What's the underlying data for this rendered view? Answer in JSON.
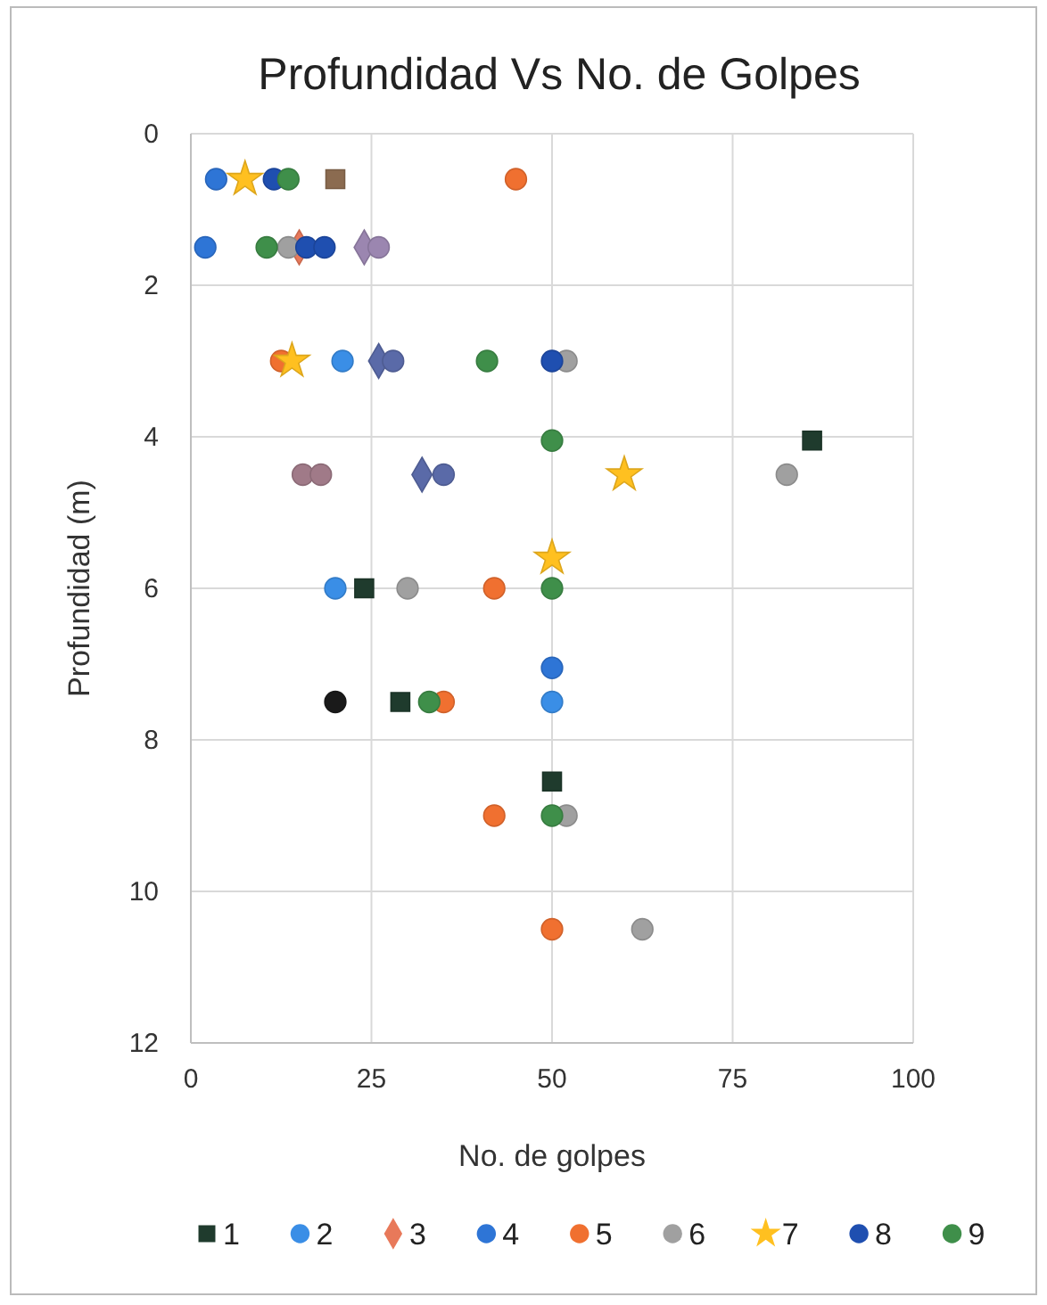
{
  "chart_data": {
    "type": "scatter",
    "title": "Profundidad Vs No. de Golpes",
    "xlabel": "No. de golpes",
    "ylabel": "Profundidad (m)",
    "xlim": [
      0,
      100
    ],
    "xticks": [
      0,
      25,
      50,
      75,
      100
    ],
    "ylim": [
      12,
      0
    ],
    "yticks": [
      0,
      2,
      4,
      6,
      8,
      10,
      12
    ],
    "grid": true,
    "legend": "bottom",
    "series": [
      {
        "name": "1",
        "color": "#1f3b2d",
        "marker": "square",
        "x": [
          86,
          24,
          29,
          50
        ],
        "values": [
          4.05,
          6,
          7.5,
          8.55
        ]
      },
      {
        "name": "2",
        "color": "#3a8ee6",
        "marker": "circle",
        "x": [
          21,
          20,
          50
        ],
        "values": [
          3,
          6,
          7.5
        ]
      },
      {
        "name": "3",
        "color": "#e8795a",
        "marker": "diamond",
        "x": [
          15
        ],
        "values": [
          1.5
        ]
      },
      {
        "name": "4",
        "color": "#2e75d6",
        "marker": "circle",
        "x": [
          3.5,
          2,
          50
        ],
        "values": [
          0.6,
          1.5,
          7.05
        ]
      },
      {
        "name": "5",
        "color": "#f07030",
        "marker": "circle",
        "x": [
          45,
          12.5,
          42,
          35,
          42,
          50
        ],
        "values": [
          0.6,
          3,
          6,
          7.5,
          9,
          10.5
        ]
      },
      {
        "name": "6",
        "color": "#a0a0a0",
        "marker": "circle",
        "x": [
          13.5,
          52,
          82.5,
          30,
          52,
          62.5
        ],
        "values": [
          1.5,
          3,
          4.5,
          6,
          9,
          10.5
        ]
      },
      {
        "name": "7",
        "color": "#ffc020",
        "marker": "star",
        "x": [
          7.5,
          14,
          60,
          50
        ],
        "values": [
          0.6,
          3,
          4.5,
          5.6
        ]
      },
      {
        "name": "8",
        "color": "#1f4fb0",
        "marker": "circle",
        "x": [
          11.5,
          16,
          18.5,
          50
        ],
        "values": [
          0.6,
          1.5,
          1.5,
          3
        ]
      },
      {
        "name": "9",
        "color": "#3f8f4a",
        "marker": "circle",
        "x": [
          13.5,
          10.5,
          41,
          50,
          50,
          33,
          50
        ],
        "values": [
          0.6,
          1.5,
          3,
          4.05,
          6,
          7.5,
          9
        ]
      },
      {
        "color": "#8b6b50",
        "marker": "square",
        "x": [
          20
        ],
        "values": [
          0.6
        ]
      },
      {
        "color": "#9b86b0",
        "marker": "diamond",
        "x": [
          24
        ],
        "values": [
          1.5
        ]
      },
      {
        "color": "#9b86b0",
        "marker": "circle",
        "x": [
          26
        ],
        "values": [
          1.5
        ]
      },
      {
        "color": "#5a6aa8",
        "marker": "diamond",
        "x": [
          26,
          32
        ],
        "values": [
          3,
          4.5
        ]
      },
      {
        "color": "#5a6aa8",
        "marker": "circle",
        "x": [
          28,
          35
        ],
        "values": [
          3,
          4.5
        ]
      },
      {
        "color": "#a07a88",
        "marker": "circle",
        "x": [
          15.5,
          18
        ],
        "values": [
          4.5,
          4.5
        ]
      },
      {
        "color": "#1a1a1a",
        "marker": "circle",
        "x": [
          20
        ],
        "values": [
          7.5
        ]
      }
    ]
  }
}
